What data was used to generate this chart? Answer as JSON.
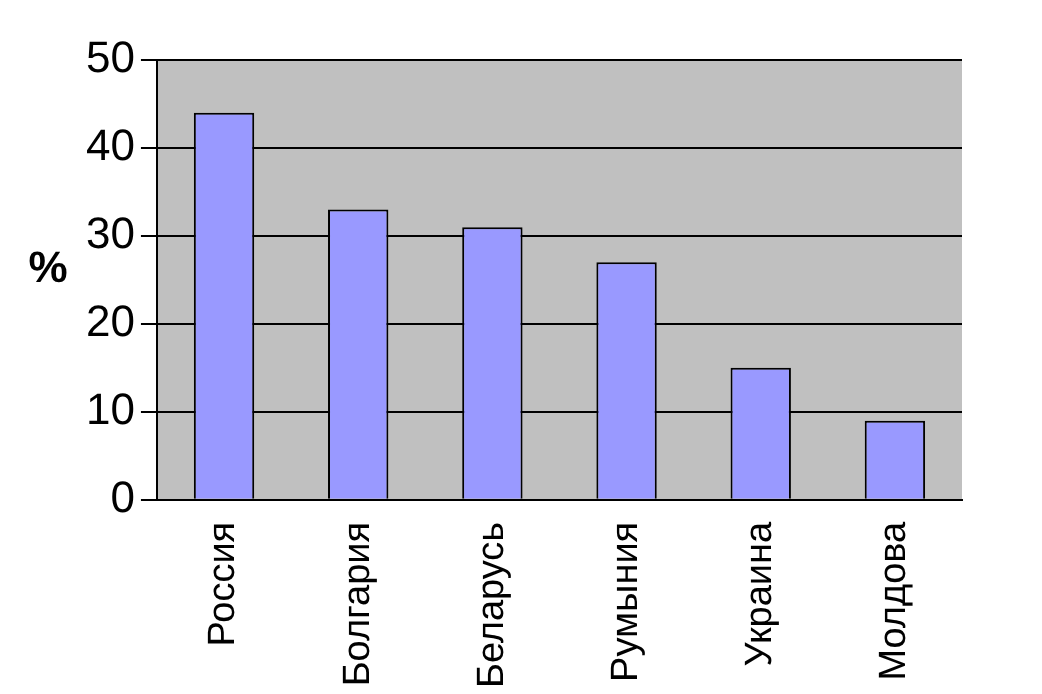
{
  "chart_data": {
    "type": "bar",
    "ylabel": "%",
    "categories": [
      "Россия",
      "Болгария",
      "Беларусь",
      "Румыния",
      "Украина",
      "Молдова"
    ],
    "values": [
      44,
      33,
      31,
      27,
      15,
      9
    ],
    "color": "#9999ff",
    "ylim": [
      0,
      50
    ],
    "yticks": [
      0,
      10,
      20,
      30,
      40,
      50
    ],
    "grid": "y",
    "legend": false
  }
}
